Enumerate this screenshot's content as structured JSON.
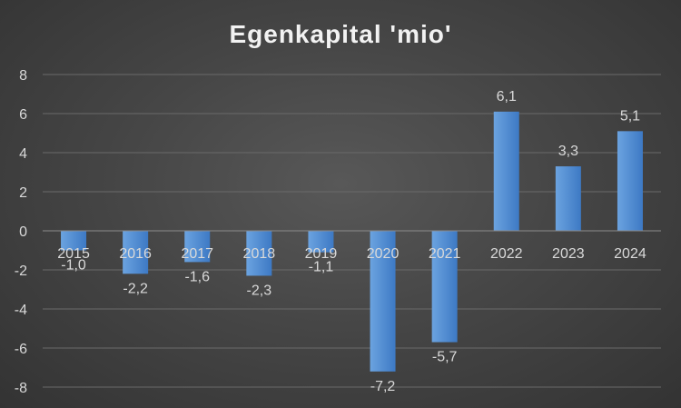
{
  "chart_data": {
    "type": "bar",
    "title": "Egenkapital 'mio'",
    "categories": [
      "2015",
      "2016",
      "2017",
      "2018",
      "2019",
      "2020",
      "2021",
      "2022",
      "2023",
      "2024"
    ],
    "values": [
      -1.0,
      -2.2,
      -1.6,
      -2.3,
      -1.1,
      -7.2,
      -5.7,
      6.1,
      3.3,
      5.1
    ],
    "data_labels": [
      "-1,0",
      "-2,2",
      "-1,6",
      "-2,3",
      "-1,1",
      "-7,2",
      "-5,7",
      "6,1",
      "3,3",
      "5,1"
    ],
    "ylim": [
      -8,
      8
    ],
    "yticks": [
      "8",
      "6",
      "4",
      "2",
      "0",
      "-2",
      "-4",
      "-6",
      "-8"
    ],
    "grid": true,
    "legend": "none",
    "colors": {
      "bar_top": "#6ba3e0",
      "bar_bottom": "#3d79c4"
    }
  }
}
